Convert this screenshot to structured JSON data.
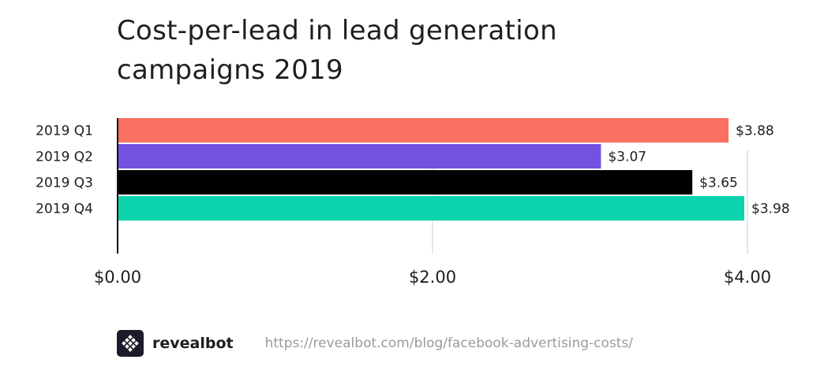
{
  "title": "Cost-per-lead in lead generation campaigns 2019",
  "footer": {
    "brand": "revealbot",
    "url": "https://revealbot.com/blog/facebook-advertising-costs/",
    "logo_icon": "revealbot-logo-icon"
  },
  "chart_data": {
    "type": "bar",
    "orientation": "horizontal",
    "title": "Cost-per-lead in lead generation campaigns 2019",
    "categories": [
      "2019 Q1",
      "2019 Q2",
      "2019 Q3",
      "2019 Q4"
    ],
    "values": [
      3.88,
      3.07,
      3.65,
      3.98
    ],
    "value_labels": [
      "$3.88",
      "$3.07",
      "$3.65",
      "$3.98"
    ],
    "colors": [
      "#fa7061",
      "#7452e0",
      "#000000",
      "#0bd4ae"
    ],
    "xlim": [
      0,
      4
    ],
    "x_ticks": [
      0,
      2,
      4
    ],
    "x_tick_labels": [
      "$0.00",
      "$2.00",
      "$4.00"
    ],
    "grid": "vertical",
    "xlabel": "",
    "ylabel": ""
  }
}
